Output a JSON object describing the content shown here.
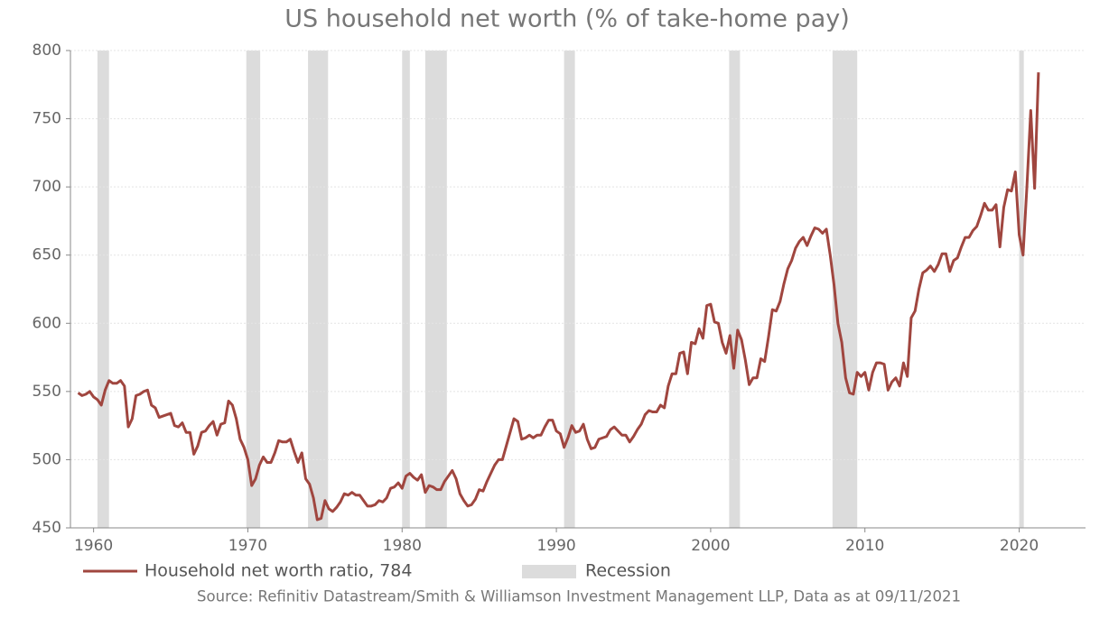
{
  "chart_data": {
    "type": "line",
    "title": "US household net worth (% of take-home pay)",
    "source": "Source: Refinitiv Datastream/Smith & Williamson Investment Management LLP, Data as at 09/11/2021",
    "xlim": [
      1958.5,
      2024.3
    ],
    "xticks": [
      1960,
      1970,
      1980,
      1990,
      2000,
      2010,
      2020
    ],
    "ylim": [
      450,
      800
    ],
    "yticks": [
      450,
      500,
      550,
      600,
      650,
      700,
      750,
      800
    ],
    "grid": true,
    "recession_name": "Recession",
    "recession_color": "#dcdcdc",
    "recessions": [
      [
        1960.25,
        1961.0
      ],
      [
        1969.9,
        1970.8
      ],
      [
        1973.9,
        1975.2
      ],
      [
        1980.0,
        1980.5
      ],
      [
        1981.5,
        1982.9
      ],
      [
        1990.5,
        1991.2
      ],
      [
        2001.2,
        2001.9
      ],
      [
        2007.9,
        2009.5
      ],
      [
        2020.0,
        2020.3
      ]
    ],
    "x": [
      1959.0,
      1959.25,
      1959.5,
      1959.75,
      1960.0,
      1960.25,
      1960.5,
      1960.75,
      1961.0,
      1961.25,
      1961.5,
      1961.75,
      1962.0,
      1962.25,
      1962.5,
      1962.75,
      1963.0,
      1963.25,
      1963.5,
      1963.75,
      1964.0,
      1964.25,
      1964.5,
      1964.75,
      1965.0,
      1965.25,
      1965.5,
      1965.75,
      1966.0,
      1966.25,
      1966.5,
      1966.75,
      1967.0,
      1967.25,
      1967.5,
      1967.75,
      1968.0,
      1968.25,
      1968.5,
      1968.75,
      1969.0,
      1969.25,
      1969.5,
      1969.75,
      1970.0,
      1970.25,
      1970.5,
      1970.75,
      1971.0,
      1971.25,
      1971.5,
      1971.75,
      1972.0,
      1972.25,
      1972.5,
      1972.75,
      1973.0,
      1973.25,
      1973.5,
      1973.75,
      1974.0,
      1974.25,
      1974.5,
      1974.75,
      1975.0,
      1975.25,
      1975.5,
      1975.75,
      1976.0,
      1976.25,
      1976.5,
      1976.75,
      1977.0,
      1977.25,
      1977.5,
      1977.75,
      1978.0,
      1978.25,
      1978.5,
      1978.75,
      1979.0,
      1979.25,
      1979.5,
      1979.75,
      1980.0,
      1980.25,
      1980.5,
      1980.75,
      1981.0,
      1981.25,
      1981.5,
      1981.75,
      1982.0,
      1982.25,
      1982.5,
      1982.75,
      1983.0,
      1983.25,
      1983.5,
      1983.75,
      1984.0,
      1984.25,
      1984.5,
      1984.75,
      1985.0,
      1985.25,
      1985.5,
      1985.75,
      1986.0,
      1986.25,
      1986.5,
      1986.75,
      1987.0,
      1987.25,
      1987.5,
      1987.75,
      1988.0,
      1988.25,
      1988.5,
      1988.75,
      1989.0,
      1989.25,
      1989.5,
      1989.75,
      1990.0,
      1990.25,
      1990.5,
      1990.75,
      1991.0,
      1991.25,
      1991.5,
      1991.75,
      1992.0,
      1992.25,
      1992.5,
      1992.75,
      1993.0,
      1993.25,
      1993.5,
      1993.75,
      1994.0,
      1994.25,
      1994.5,
      1994.75,
      1995.0,
      1995.25,
      1995.5,
      1995.75,
      1996.0,
      1996.25,
      1996.5,
      1996.75,
      1997.0,
      1997.25,
      1997.5,
      1997.75,
      1998.0,
      1998.25,
      1998.5,
      1998.75,
      1999.0,
      1999.25,
      1999.5,
      1999.75,
      2000.0,
      2000.25,
      2000.5,
      2000.75,
      2001.0,
      2001.25,
      2001.5,
      2001.75,
      2002.0,
      2002.25,
      2002.5,
      2002.75,
      2003.0,
      2003.25,
      2003.5,
      2003.75,
      2004.0,
      2004.25,
      2004.5,
      2004.75,
      2005.0,
      2005.25,
      2005.5,
      2005.75,
      2006.0,
      2006.25,
      2006.5,
      2006.75,
      2007.0,
      2007.25,
      2007.5,
      2007.75,
      2008.0,
      2008.25,
      2008.5,
      2008.75,
      2009.0,
      2009.25,
      2009.5,
      2009.75,
      2010.0,
      2010.25,
      2010.5,
      2010.75,
      2011.0,
      2011.25,
      2011.5,
      2011.75,
      2012.0,
      2012.25,
      2012.5,
      2012.75,
      2013.0,
      2013.25,
      2013.5,
      2013.75,
      2014.0,
      2014.25,
      2014.5,
      2014.75,
      2015.0,
      2015.25,
      2015.5,
      2015.75,
      2016.0,
      2016.25,
      2016.5,
      2016.75,
      2017.0,
      2017.25,
      2017.5,
      2017.75,
      2018.0,
      2018.25,
      2018.5,
      2018.75,
      2019.0,
      2019.25,
      2019.5,
      2019.75,
      2020.0,
      2020.25,
      2020.5,
      2020.75,
      2021.0,
      2021.25
    ],
    "series": [
      {
        "name": "Household net worth ratio, 784",
        "color": "#a0463f",
        "values": [
          549,
          547,
          548,
          550,
          546,
          544,
          540,
          551,
          558,
          556,
          556,
          558,
          554,
          524,
          530,
          547,
          548,
          550,
          551,
          540,
          538,
          531,
          532,
          533,
          534,
          525,
          524,
          527,
          520,
          520,
          504,
          510,
          520,
          521,
          525,
          528,
          518,
          526,
          527,
          543,
          540,
          530,
          515,
          509,
          500,
          481,
          486,
          496,
          502,
          498,
          498,
          505,
          514,
          513,
          513,
          515,
          506,
          498,
          505,
          486,
          482,
          472,
          456,
          457,
          470,
          464,
          462,
          465,
          469,
          475,
          474,
          476,
          474,
          474,
          470,
          466,
          466,
          467,
          470,
          469,
          472,
          479,
          480,
          483,
          479,
          488,
          490,
          487,
          485,
          489,
          476,
          481,
          480,
          478,
          478,
          484,
          488,
          492,
          486,
          475,
          470,
          466,
          467,
          471,
          478,
          477,
          484,
          490,
          496,
          500,
          500,
          510,
          520,
          530,
          528,
          515,
          516,
          518,
          516,
          518,
          518,
          524,
          529,
          529,
          521,
          519,
          509,
          516,
          525,
          520,
          521,
          526,
          515,
          508,
          509,
          515,
          516,
          517,
          522,
          524,
          521,
          518,
          518,
          513,
          517,
          522,
          526,
          533,
          536,
          535,
          535,
          540,
          538,
          554,
          563,
          563,
          578,
          579,
          563,
          586,
          585,
          596,
          589,
          613,
          614,
          601,
          600,
          586,
          578,
          591,
          567,
          595,
          588,
          573,
          555,
          560,
          560,
          574,
          572,
          590,
          610,
          609,
          616,
          629,
          640,
          646,
          655,
          660,
          663,
          657,
          664,
          670,
          669,
          666,
          669,
          650,
          628,
          600,
          586,
          560,
          549,
          548,
          564,
          561,
          564,
          551,
          564,
          571,
          571,
          570,
          551,
          557,
          560,
          554,
          571,
          561,
          604,
          609,
          625,
          637,
          639,
          642,
          638,
          643,
          651,
          651,
          638,
          646,
          648,
          656,
          663,
          663,
          668,
          671,
          679,
          688,
          683,
          683,
          687,
          656,
          685,
          698,
          697,
          711,
          665,
          650,
          700,
          756,
          699,
          784
        ]
      }
    ]
  }
}
